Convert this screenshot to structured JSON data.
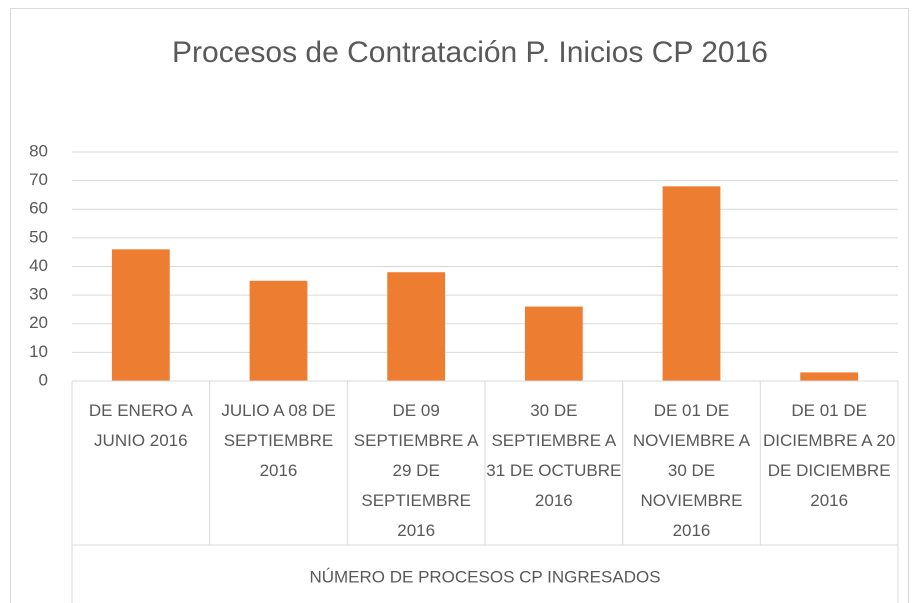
{
  "chart_data": {
    "type": "bar",
    "title": "Procesos de Contratación P. Inicios CP 2016",
    "categories": [
      "DE ENERO A JUNIO 2016",
      "JULIO A 08 DE SEPTIEMBRE 2016",
      "DE 09 SEPTIEMBRE A 29 DE SEPTIEMBRE 2016",
      "30 DE SEPTIEMBRE A 31 DE OCTUBRE 2016",
      "DE 01 DE NOVIEMBRE A 30 DE NOVIEMBRE 2016",
      "DE 01 DE DICIEMBRE A 20 DE DICIEMBRE 2016"
    ],
    "x_group_label": "NÚMERO DE PROCESOS CP INGRESADOS",
    "values": [
      46,
      35,
      38,
      26,
      68,
      3
    ],
    "color": "#ed7d31",
    "ylim": [
      0,
      80
    ],
    "yticks": [
      0,
      10,
      20,
      30,
      40,
      50,
      60,
      70,
      80
    ],
    "grid": true
  }
}
